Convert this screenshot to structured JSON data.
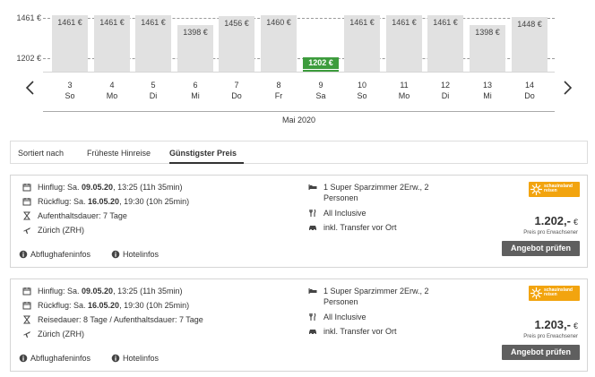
{
  "calendar": {
    "y_labels": [
      "1461 €",
      "1202 €"
    ],
    "month": "Mai 2020",
    "prev_icon": "chevron-left-icon",
    "next_icon": "chevron-right-icon",
    "days": [
      {
        "date": "3",
        "weekday": "So",
        "price": 1461,
        "label": "1461 €"
      },
      {
        "date": "4",
        "weekday": "Mo",
        "price": 1461,
        "label": "1461 €"
      },
      {
        "date": "5",
        "weekday": "Di",
        "price": 1461,
        "label": "1461 €"
      },
      {
        "date": "6",
        "weekday": "Mi",
        "price": 1398,
        "label": "1398 €"
      },
      {
        "date": "7",
        "weekday": "Do",
        "price": 1456,
        "label": "1456 €"
      },
      {
        "date": "8",
        "weekday": "Fr",
        "price": 1460,
        "label": "1460 €"
      },
      {
        "date": "9",
        "weekday": "Sa",
        "price": 1202,
        "label": "1202 €",
        "selected": true
      },
      {
        "date": "10",
        "weekday": "So",
        "price": 1461,
        "label": "1461 €"
      },
      {
        "date": "11",
        "weekday": "Mo",
        "price": 1461,
        "label": "1461 €"
      },
      {
        "date": "12",
        "weekday": "Di",
        "price": 1461,
        "label": "1461 €"
      },
      {
        "date": "13",
        "weekday": "Mi",
        "price": 1398,
        "label": "1398 €"
      },
      {
        "date": "14",
        "weekday": "Do",
        "price": 1448,
        "label": "1448 €"
      }
    ],
    "colors": {
      "bar": "#e1e1e1",
      "best": "#3d9c3d"
    }
  },
  "sort": {
    "label": "Sortiert nach",
    "options": [
      "Früheste Hinreise",
      "Günstigster Preis"
    ],
    "active": "Günstigster Preis"
  },
  "offers": [
    {
      "outbound_prefix": "Hinflug: Sa. ",
      "outbound_date": "09.05.20",
      "outbound_suffix": ", 13:25 (11h 35min)",
      "return_prefix": "Rückflug: Sa. ",
      "return_date": "16.05.20",
      "return_suffix": ", 19:30 (10h 25min)",
      "duration": "Aufenthaltsdauer: 7 Tage",
      "airport": "Zürich (ZRH)",
      "room_line1": "1 Super Sparzimmer 2Erw., 2",
      "room_line2": "Personen",
      "board": "All Inclusive",
      "transfer": "inkl. Transfer vor Ort",
      "operator_logo": {
        "line1": "schauinsland",
        "line2": "reisen"
      },
      "price": "1.202,-",
      "currency": "€",
      "price_note": "Preis pro Erwachsener",
      "cta": "Angebot prüfen",
      "links": [
        "Abflughafeninfos",
        "Hotelinfos"
      ]
    },
    {
      "outbound_prefix": "Hinflug: Sa. ",
      "outbound_date": "09.05.20",
      "outbound_suffix": ", 13:25 (11h 35min)",
      "return_prefix": "Rückflug: Sa. ",
      "return_date": "16.05.20",
      "return_suffix": ", 19:30 (10h 25min)",
      "duration": "Reisedauer: 8 Tage / Aufenthaltsdauer: 7 Tage",
      "airport": "Zürich (ZRH)",
      "room_line1": "1 Super Sparzimmer 2Erw., 2",
      "room_line2": "Personen",
      "board": "All Inclusive",
      "transfer": "inkl. Transfer vor Ort",
      "operator_logo": {
        "line1": "schauinsland",
        "line2": "reisen"
      },
      "price": "1.203,-",
      "currency": "€",
      "price_note": "Preis pro Erwachsener",
      "cta": "Angebot prüfen",
      "links": [
        "Abflughafeninfos",
        "Hotelinfos"
      ]
    }
  ]
}
